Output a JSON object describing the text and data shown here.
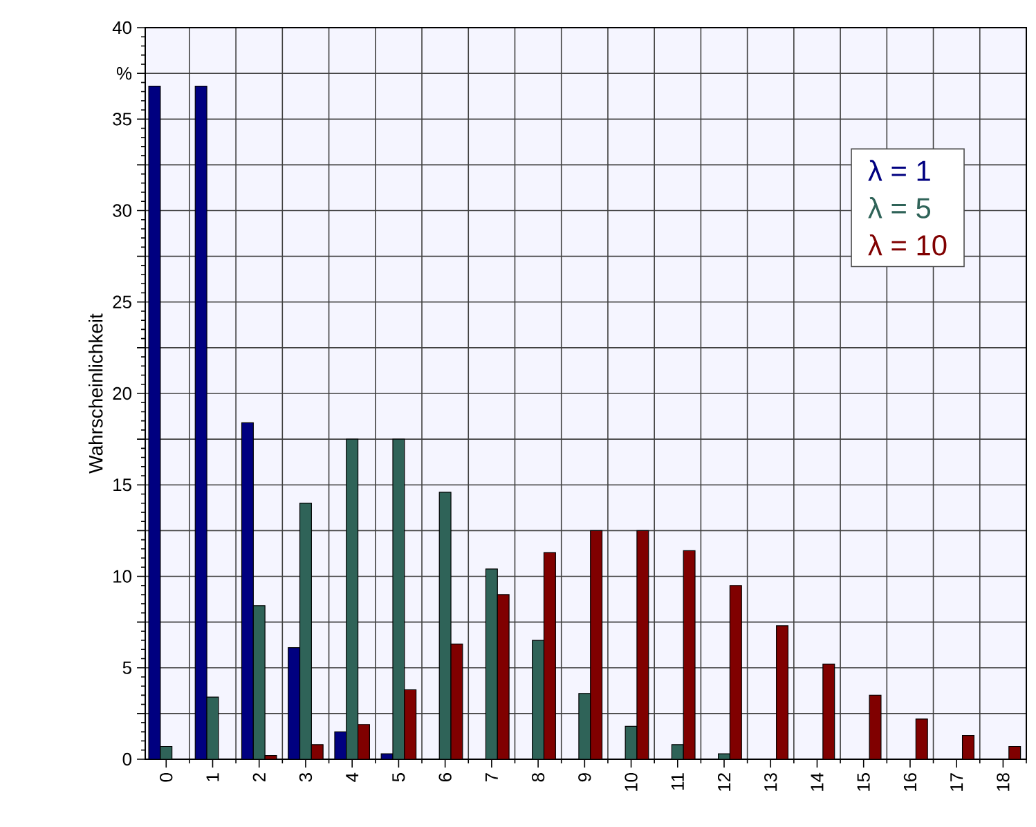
{
  "chart_data": {
    "type": "bar",
    "ylabel": "Wahrscheinlichkeit",
    "categories": [
      "0",
      "1",
      "2",
      "3",
      "4",
      "5",
      "6",
      "7",
      "8",
      "9",
      "10",
      "11",
      "12",
      "13",
      "14",
      "15",
      "16",
      "17",
      "18"
    ],
    "series": [
      {
        "name": "λ =   1",
        "color": "#000080",
        "values": [
          36.8,
          36.8,
          18.4,
          6.1,
          1.5,
          0.3,
          0,
          0,
          0,
          0,
          0,
          0,
          0,
          0,
          0,
          0,
          0,
          0,
          0
        ]
      },
      {
        "name": "λ =   5",
        "color": "#2f6358",
        "values": [
          0.7,
          3.4,
          8.4,
          14.0,
          17.5,
          17.5,
          14.6,
          10.4,
          6.5,
          3.6,
          1.8,
          0.8,
          0.3,
          0,
          0,
          0,
          0,
          0,
          0
        ]
      },
      {
        "name": "λ = 10",
        "color": "#800000",
        "values": [
          0,
          0,
          0.2,
          0.8,
          1.9,
          3.8,
          6.3,
          9.0,
          11.3,
          12.5,
          12.5,
          11.4,
          9.5,
          7.3,
          5.2,
          3.5,
          2.2,
          1.3,
          0.7
        ]
      }
    ],
    "ylim": [
      0,
      40
    ],
    "yticks": [
      0,
      {
        "value": 2.5,
        "label": null
      },
      5,
      {
        "value": 7.5,
        "label": null
      },
      10,
      {
        "value": 12.5,
        "label": null
      },
      15,
      {
        "value": 17.5,
        "label": null
      },
      20,
      {
        "value": 22.5,
        "label": null
      },
      25,
      {
        "value": 27.5,
        "label": null
      },
      30,
      {
        "value": 32.5,
        "label": null
      },
      35,
      {
        "value": 37.5,
        "label": "%"
      },
      40
    ],
    "grid": true,
    "legend": "top right"
  }
}
